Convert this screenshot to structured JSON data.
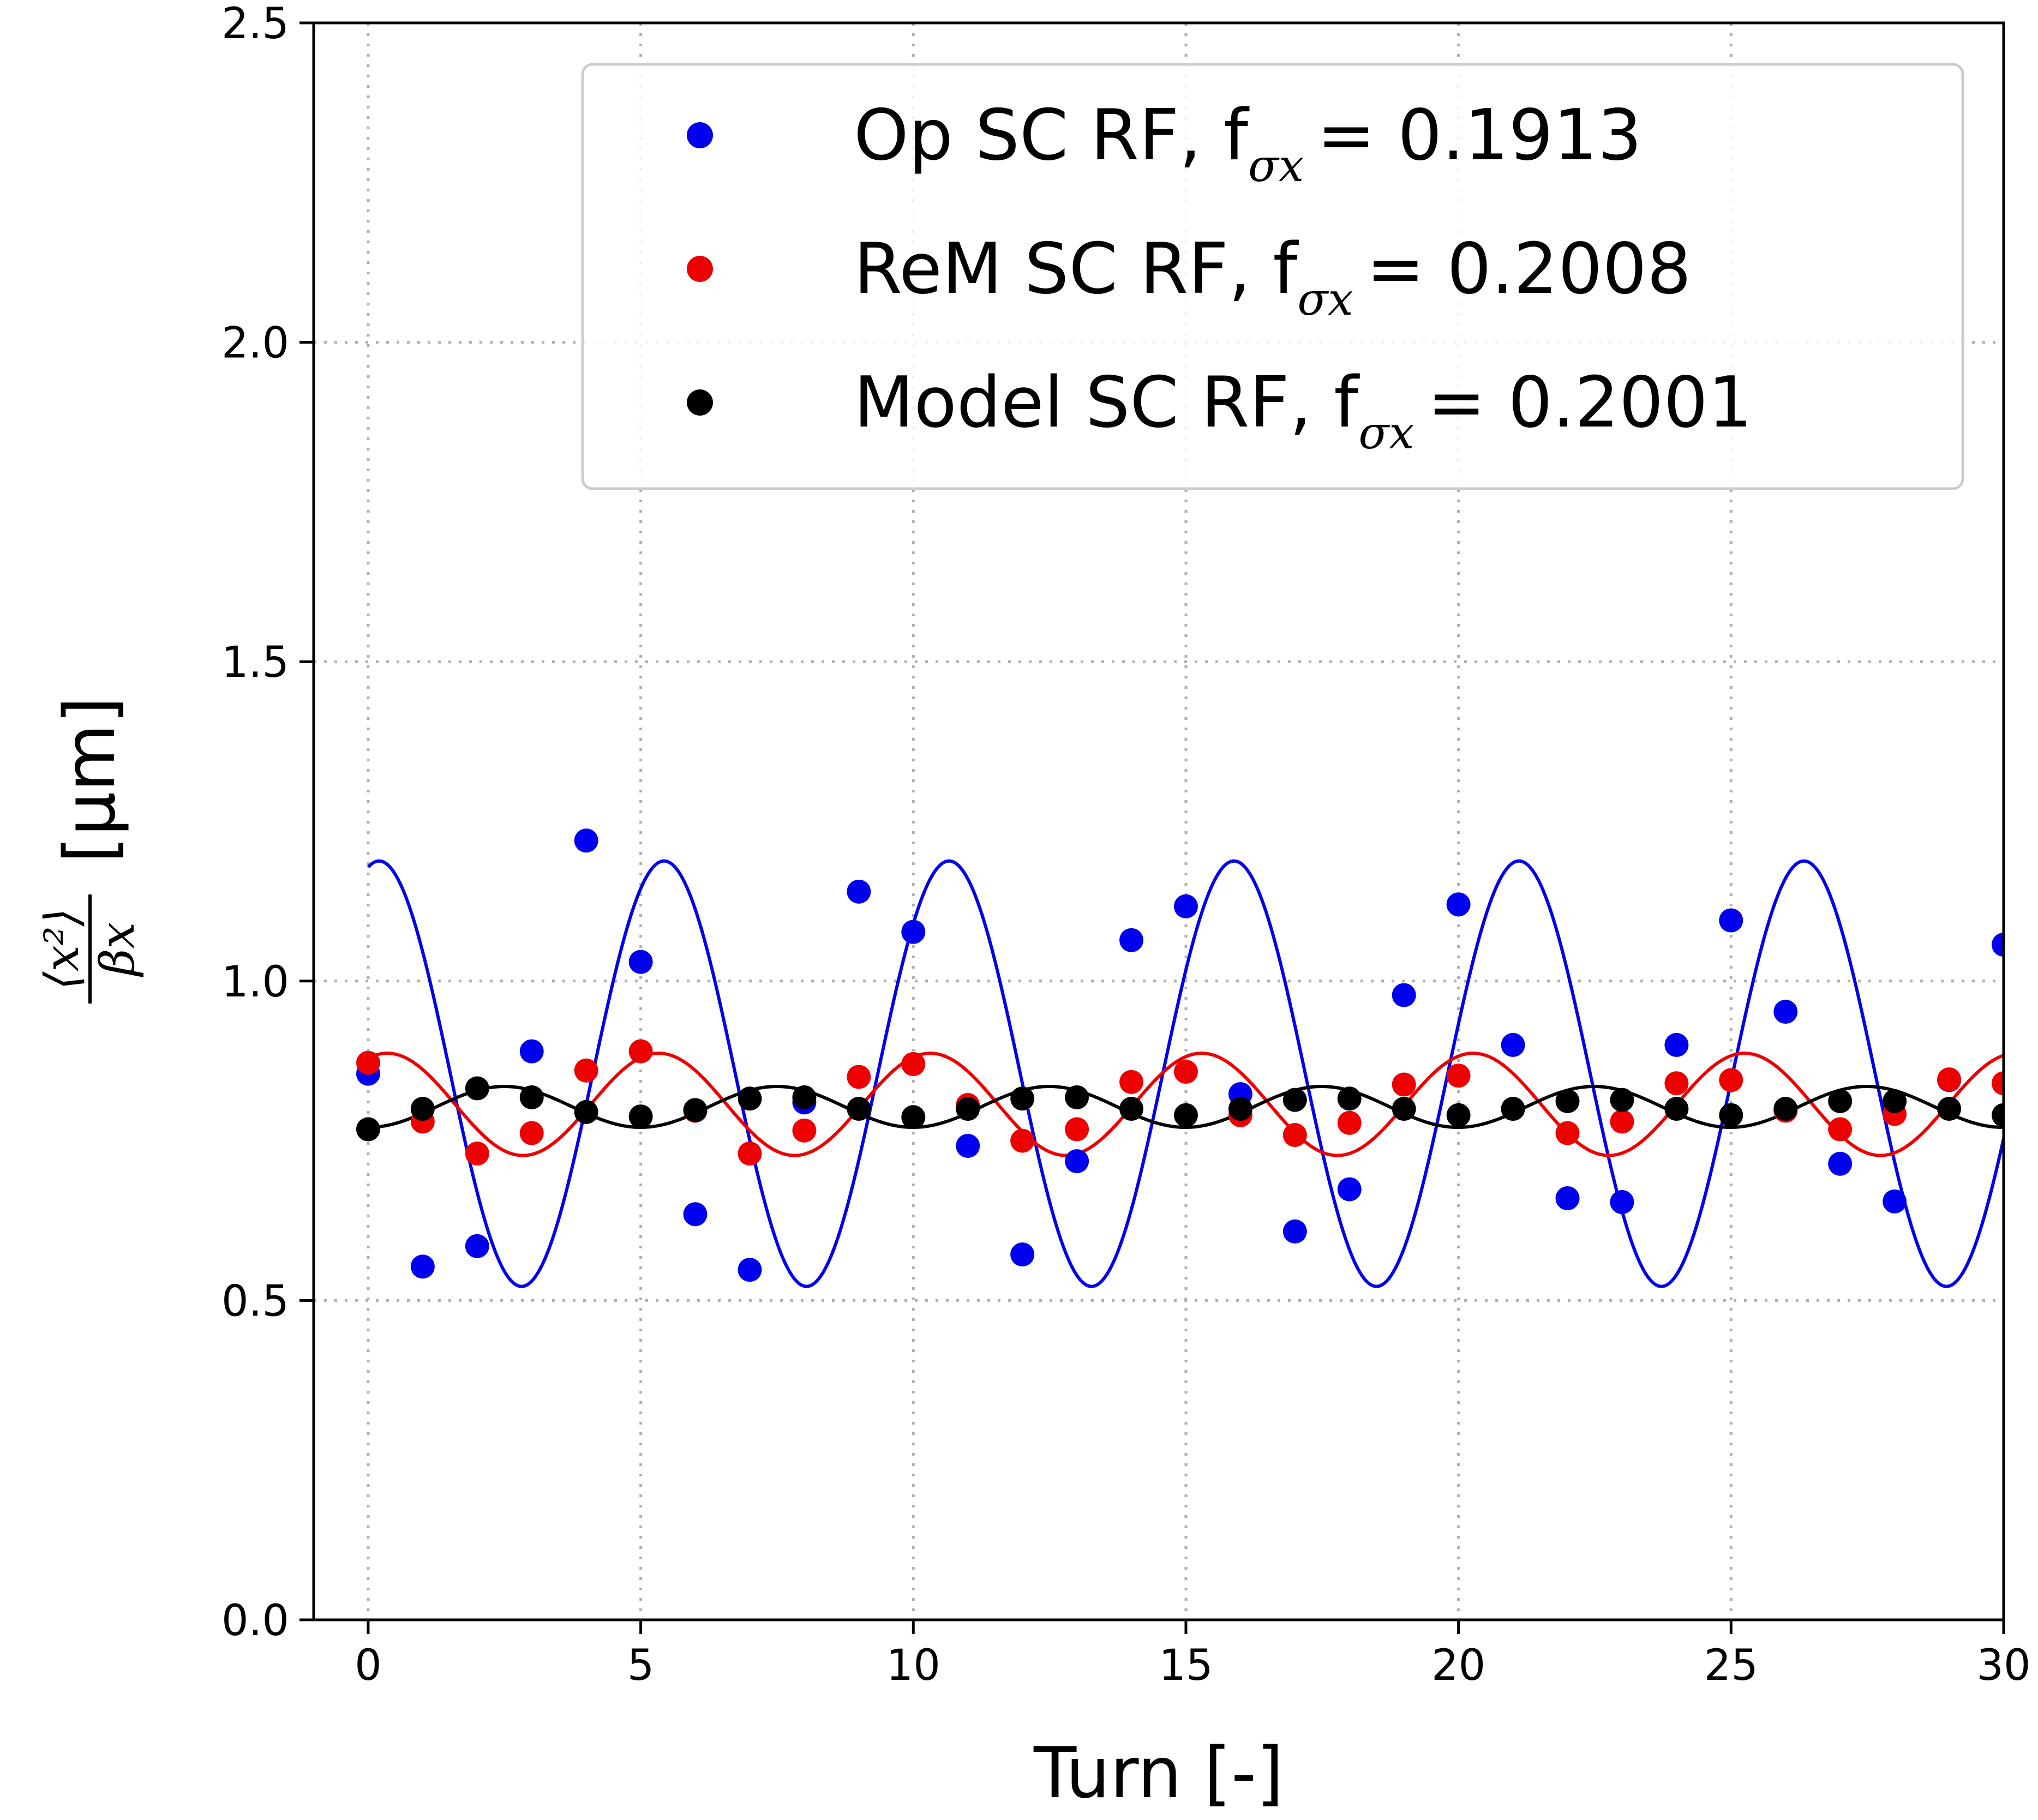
{
  "chart_data": {
    "type": "scatter",
    "title": "",
    "xlabel": "Turn [-]",
    "ylabel": {
      "numerator": "⟨x²⟩",
      "denominator": "βx",
      "unit": "[μm]"
    },
    "xlim": [
      -1,
      30
    ],
    "ylim": [
      0,
      2.5
    ],
    "xticks": [
      0,
      5,
      10,
      15,
      20,
      25,
      30
    ],
    "yticks": [
      0.0,
      0.5,
      1.0,
      1.5,
      2.0,
      2.5
    ],
    "xtick_labels": [
      "0",
      "5",
      "10",
      "15",
      "20",
      "25",
      "30"
    ],
    "ytick_labels": [
      "0.0",
      "0.5",
      "1.0",
      "1.5",
      "2.0",
      "2.5"
    ],
    "grid": true,
    "legend_position": "top-right",
    "series": [
      {
        "name": "Op SC RF",
        "legend_label": "Op SC RF, f",
        "legend_value": "= 0.1913",
        "color": "#0000ee",
        "x": [
          0,
          1,
          2,
          3,
          4,
          5,
          6,
          7,
          8,
          9,
          10,
          11,
          12,
          13,
          14,
          15,
          16,
          17,
          18,
          19,
          20,
          21,
          22,
          23,
          24,
          25,
          26,
          27,
          28,
          29,
          30
        ],
        "y": [
          0.855,
          0.553,
          0.585,
          0.89,
          1.22,
          1.03,
          0.635,
          0.548,
          0.81,
          1.14,
          1.077,
          0.742,
          0.572,
          0.718,
          1.064,
          1.117,
          0.823,
          0.608,
          0.674,
          0.978,
          1.12,
          0.9,
          0.66,
          0.654,
          0.9,
          1.095,
          0.952,
          0.714,
          0.655,
          0.845,
          1.057
        ],
        "fit": {
          "mean": 0.855,
          "amplitude": 0.333,
          "frequency": 0.1913,
          "phase": 1.33
        }
      },
      {
        "name": "ReM SC RF",
        "legend_label": "ReM SC RF, f",
        "legend_value": "= 0.2008",
        "color": "#ee0000",
        "x": [
          0,
          1,
          2,
          3,
          4,
          5,
          6,
          7,
          8,
          9,
          10,
          11,
          12,
          13,
          14,
          15,
          16,
          17,
          18,
          19,
          20,
          21,
          22,
          23,
          24,
          25,
          26,
          27,
          28,
          29,
          30
        ],
        "y": [
          0.872,
          0.78,
          0.73,
          0.762,
          0.86,
          0.89,
          0.797,
          0.73,
          0.766,
          0.85,
          0.87,
          0.806,
          0.75,
          0.768,
          0.842,
          0.858,
          0.79,
          0.759,
          0.778,
          0.838,
          0.852,
          0.8,
          0.762,
          0.78,
          0.84,
          0.845,
          0.797,
          0.768,
          0.792,
          0.846,
          0.84
        ],
        "fit": {
          "mean": 0.807,
          "amplitude": 0.08,
          "frequency": 0.2008,
          "phase": 1.13
        }
      },
      {
        "name": "Model SC RF",
        "legend_label": "Model SC RF, f",
        "legend_value": "= 0.2001",
        "color": "#000000",
        "x": [
          0,
          1,
          2,
          3,
          4,
          5,
          6,
          7,
          8,
          9,
          10,
          11,
          12,
          13,
          14,
          15,
          16,
          17,
          18,
          19,
          20,
          21,
          22,
          23,
          24,
          25,
          26,
          27,
          28,
          29,
          30
        ],
        "y": [
          0.768,
          0.8,
          0.832,
          0.818,
          0.795,
          0.788,
          0.798,
          0.816,
          0.818,
          0.8,
          0.787,
          0.8,
          0.816,
          0.818,
          0.8,
          0.79,
          0.8,
          0.814,
          0.816,
          0.8,
          0.79,
          0.8,
          0.812,
          0.814,
          0.8,
          0.79,
          0.8,
          0.812,
          0.812,
          0.8,
          0.79
        ],
        "fit": {
          "mean": 0.803,
          "amplitude": 0.032,
          "frequency": 0.2001,
          "phase": -1.57
        }
      }
    ],
    "legend_subscript": "σx"
  }
}
